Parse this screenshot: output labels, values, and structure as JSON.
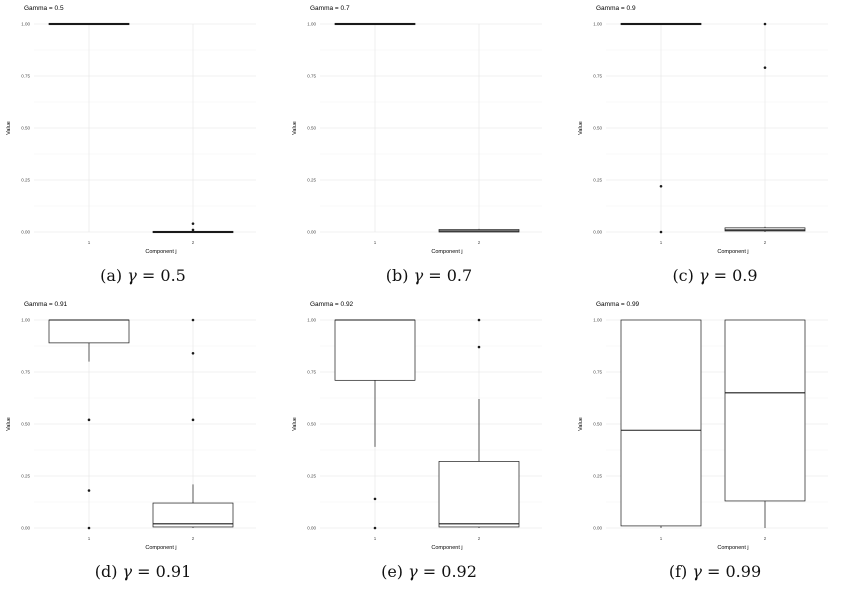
{
  "figure": {
    "panels": [
      {
        "caption": {
          "letter": "(a)",
          "symbol": "γ",
          "eq": "= 0.5"
        },
        "chart_data": {
          "type": "box",
          "title": "Gamma = 0.5",
          "xlabel": "Component j",
          "ylabel": "Value",
          "categories": [
            "1",
            "2"
          ],
          "y_ticks": [
            "0.00",
            "0.25",
            "0.50",
            "0.75",
            "1.00"
          ],
          "ylim": [
            0,
            1
          ],
          "boxes": [
            {
              "category": "1",
              "min": 1.0,
              "q1": 1.0,
              "median": 1.0,
              "q3": 1.0,
              "max": 1.0,
              "outliers": []
            },
            {
              "category": "2",
              "min": 0.0,
              "q1": 0.0,
              "median": 0.0,
              "q3": 0.0,
              "max": 0.0,
              "outliers": [
                0.04,
                0.01
              ]
            }
          ]
        }
      },
      {
        "caption": {
          "letter": "(b)",
          "symbol": "γ",
          "eq": "= 0.7"
        },
        "chart_data": {
          "type": "box",
          "title": "Gamma = 0.7",
          "xlabel": "Component j",
          "ylabel": "Value",
          "categories": [
            "1",
            "2"
          ],
          "y_ticks": [
            "0.00",
            "0.25",
            "0.50",
            "0.75",
            "1.00"
          ],
          "ylim": [
            0,
            1
          ],
          "boxes": [
            {
              "category": "1",
              "min": 1.0,
              "q1": 1.0,
              "median": 1.0,
              "q3": 1.0,
              "max": 1.0,
              "outliers": []
            },
            {
              "category": "2",
              "min": 0.0,
              "q1": 0.0,
              "median": 0.005,
              "q3": 0.012,
              "max": 0.015,
              "outliers": []
            }
          ]
        }
      },
      {
        "caption": {
          "letter": "(c)",
          "symbol": "γ",
          "eq": "= 0.9"
        },
        "chart_data": {
          "type": "box",
          "title": "Gamma = 0.9",
          "xlabel": "Component j",
          "ylabel": "Value",
          "categories": [
            "1",
            "2"
          ],
          "y_ticks": [
            "0.00",
            "0.25",
            "0.50",
            "0.75",
            "1.00"
          ],
          "ylim": [
            0,
            1
          ],
          "boxes": [
            {
              "category": "1",
              "min": 1.0,
              "q1": 1.0,
              "median": 1.0,
              "q3": 1.0,
              "max": 1.0,
              "outliers": [
                0.22,
                0.0
              ]
            },
            {
              "category": "2",
              "min": 0.0,
              "q1": 0.005,
              "median": 0.01,
              "q3": 0.02,
              "max": 0.025,
              "outliers": [
                1.0,
                0.79
              ]
            }
          ]
        }
      },
      {
        "caption": {
          "letter": "(d)",
          "symbol": "γ",
          "eq": "= 0.91"
        },
        "chart_data": {
          "type": "box",
          "title": "Gamma = 0.91",
          "xlabel": "Component j",
          "ylabel": "Value",
          "categories": [
            "1",
            "2"
          ],
          "y_ticks": [
            "0.00",
            "0.25",
            "0.50",
            "0.75",
            "1.00"
          ],
          "ylim": [
            0,
            1
          ],
          "boxes": [
            {
              "category": "1",
              "min": 0.8,
              "q1": 0.89,
              "median": 1.0,
              "q3": 1.0,
              "max": 1.0,
              "outliers": [
                0.52,
                0.18,
                0.0
              ]
            },
            {
              "category": "2",
              "min": 0.0,
              "q1": 0.005,
              "median": 0.02,
              "q3": 0.12,
              "max": 0.21,
              "outliers": [
                1.0,
                0.84,
                0.52
              ]
            }
          ]
        }
      },
      {
        "caption": {
          "letter": "(e)",
          "symbol": "γ",
          "eq": "= 0.92"
        },
        "chart_data": {
          "type": "box",
          "title": "Gamma = 0.92",
          "xlabel": "Component j",
          "ylabel": "Value",
          "categories": [
            "1",
            "2"
          ],
          "y_ticks": [
            "0.00",
            "0.25",
            "0.50",
            "0.75",
            "1.00"
          ],
          "ylim": [
            0,
            1
          ],
          "boxes": [
            {
              "category": "1",
              "min": 0.39,
              "q1": 0.71,
              "median": 1.0,
              "q3": 1.0,
              "max": 1.0,
              "outliers": [
                0.14,
                0.0
              ]
            },
            {
              "category": "2",
              "min": 0.0,
              "q1": 0.005,
              "median": 0.02,
              "q3": 0.32,
              "max": 0.62,
              "outliers": [
                1.0,
                0.87
              ]
            }
          ]
        }
      },
      {
        "caption": {
          "letter": "(f)",
          "symbol": "γ",
          "eq": "= 0.99"
        },
        "chart_data": {
          "type": "box",
          "title": "Gamma = 0.99",
          "xlabel": "Component j",
          "ylabel": "Value",
          "categories": [
            "1",
            "2"
          ],
          "y_ticks": [
            "0.00",
            "0.25",
            "0.50",
            "0.75",
            "1.00"
          ],
          "ylim": [
            0,
            1
          ],
          "boxes": [
            {
              "category": "1",
              "min": 0.0,
              "q1": 0.01,
              "median": 0.47,
              "q3": 1.0,
              "max": 1.0,
              "outliers": []
            },
            {
              "category": "2",
              "min": 0.0,
              "q1": 0.13,
              "median": 0.65,
              "q3": 1.0,
              "max": 1.0,
              "outliers": []
            }
          ]
        }
      }
    ]
  }
}
